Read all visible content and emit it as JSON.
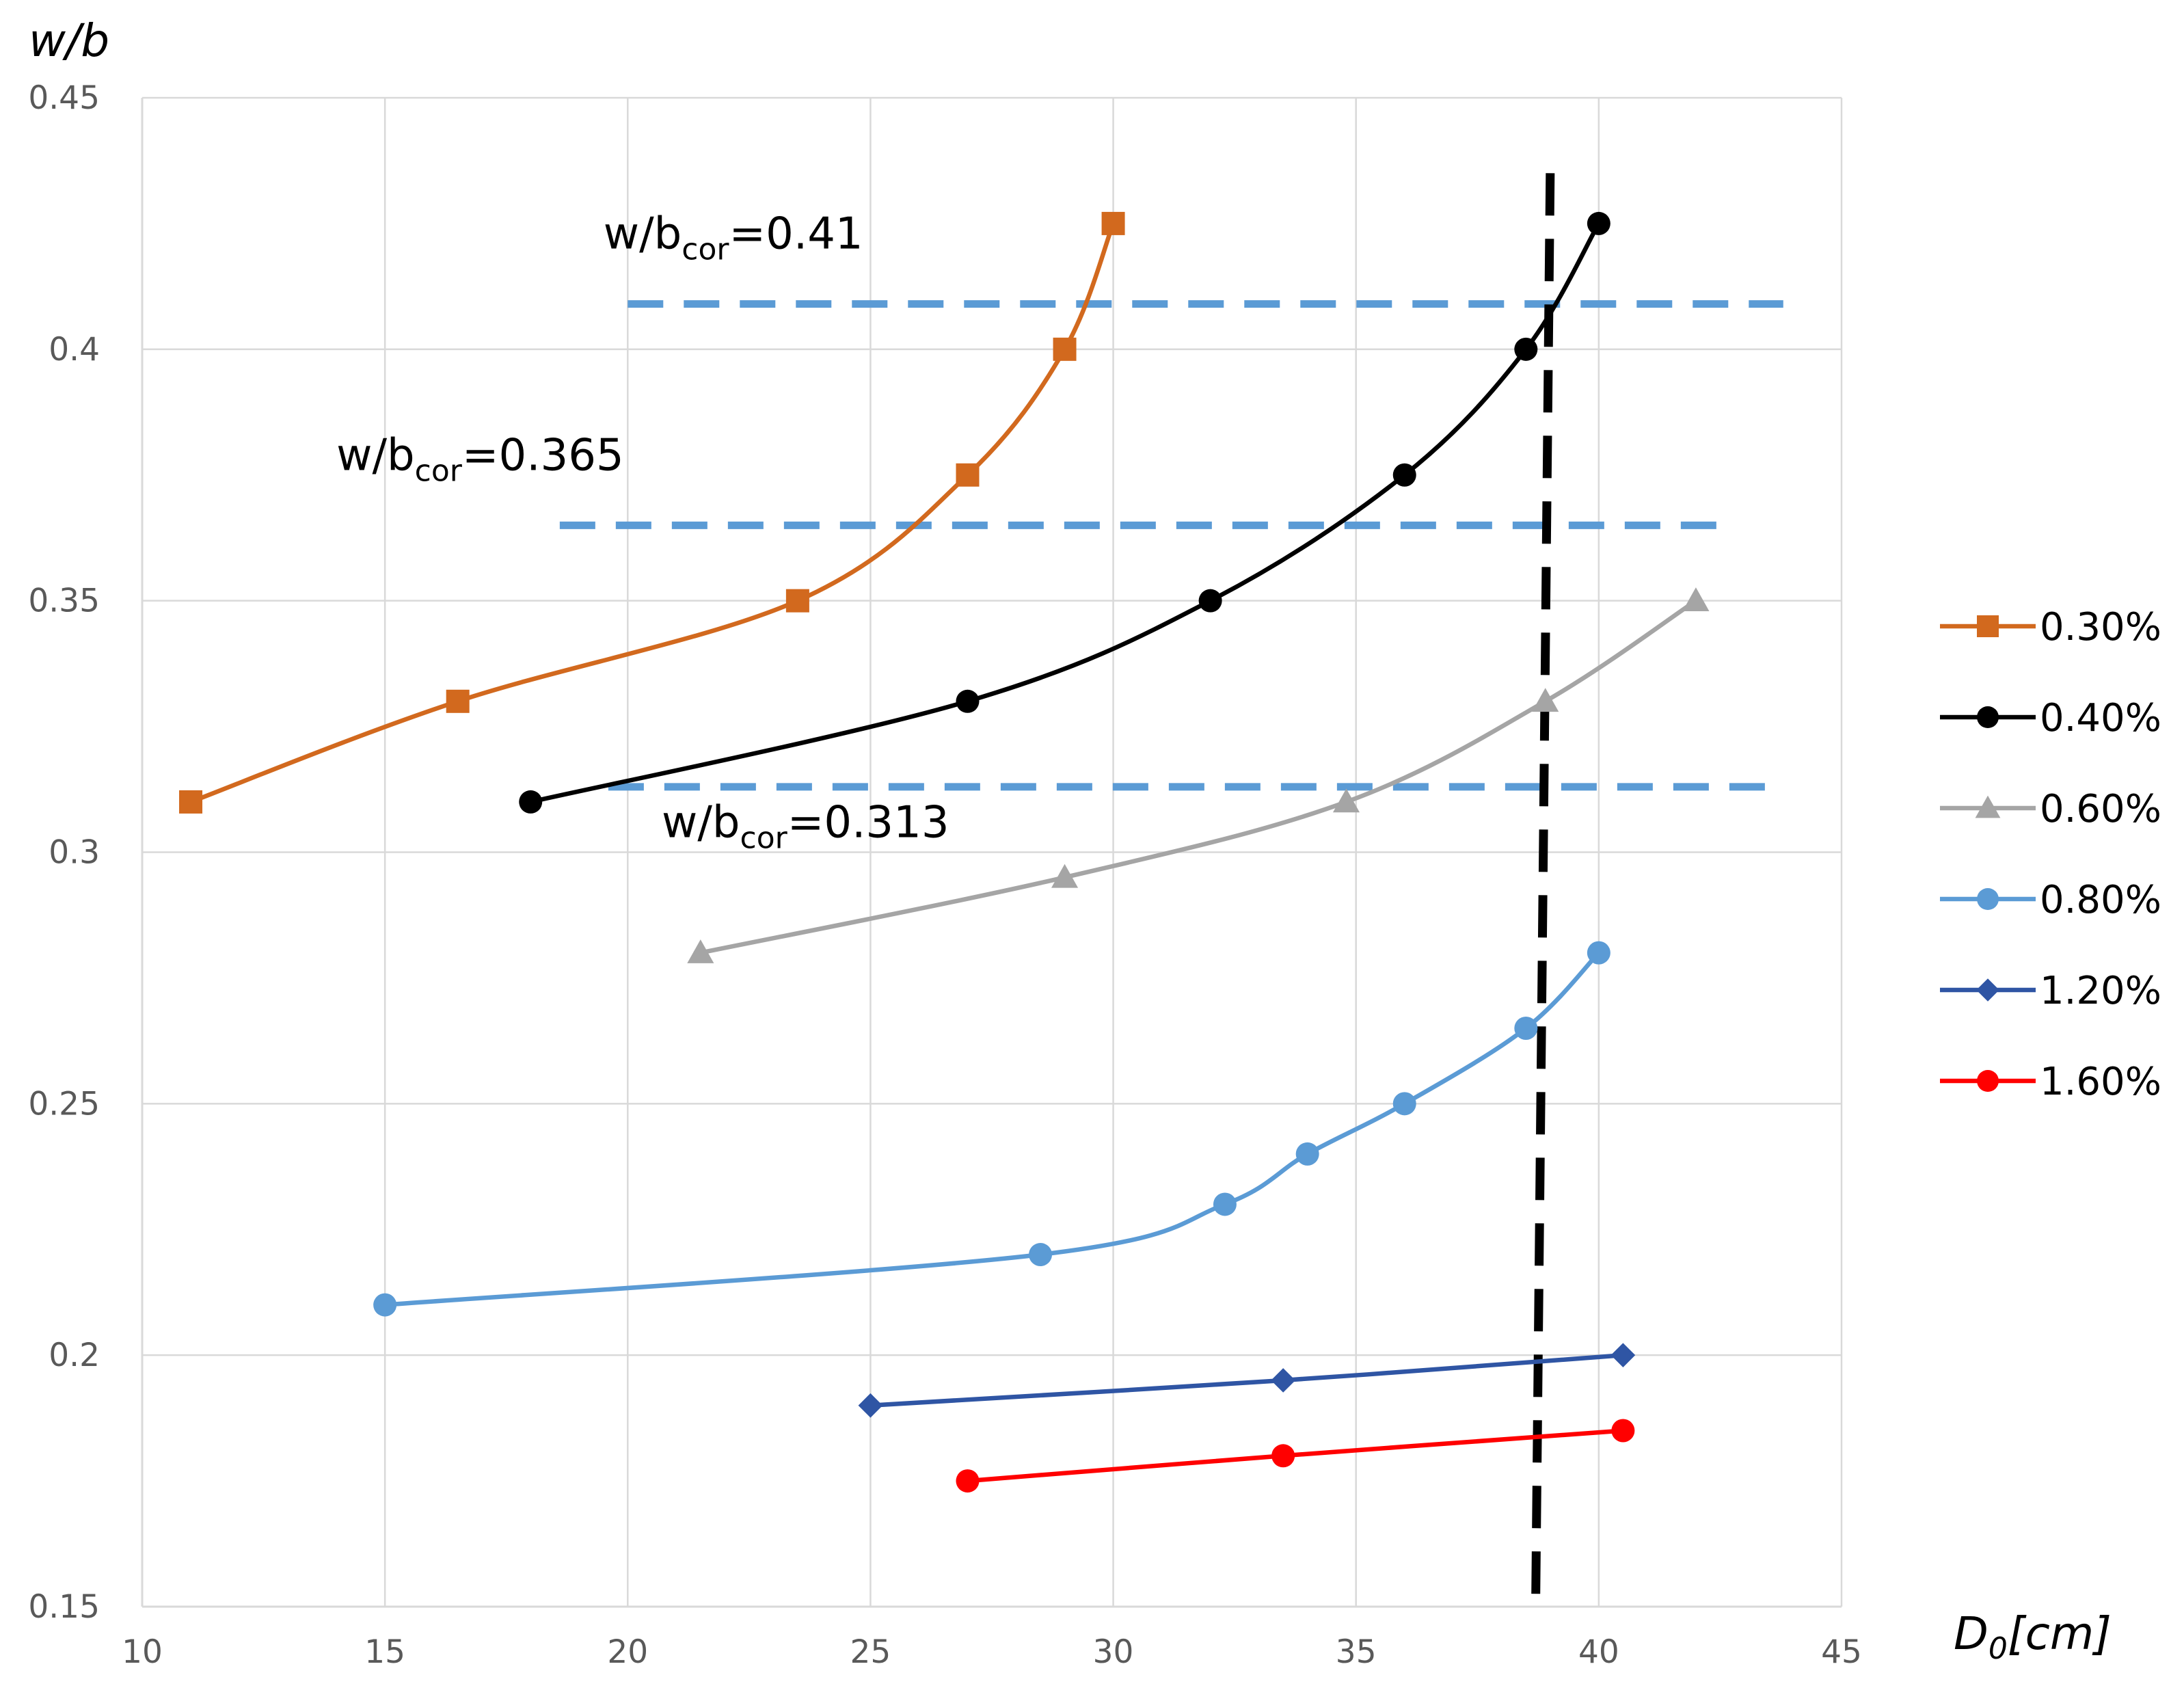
{
  "chart_data": {
    "type": "line",
    "ylabel": "w/b",
    "xlabel_main": "D",
    "xlabel_sub": "0",
    "xlabel_tail": "[cm]",
    "xlim": [
      10,
      45
    ],
    "ylim": [
      0.15,
      0.45
    ],
    "xticks": [
      "10",
      "15",
      "20",
      "25",
      "30",
      "35",
      "40",
      "45"
    ],
    "yticks": [
      "0.15",
      "0.2",
      "0.25",
      "0.3",
      "0.35",
      "0.4",
      "0.45"
    ],
    "grid": true,
    "legend_position": "right",
    "series": [
      {
        "name": "0.30%",
        "color": "#D2691E",
        "marker": "square",
        "x": [
          11,
          16.5,
          23.5,
          27,
          29,
          30
        ],
        "y": [
          0.31,
          0.33,
          0.35,
          0.375,
          0.4,
          0.425
        ]
      },
      {
        "name": "0.40%",
        "color": "#000000",
        "marker": "circle",
        "x": [
          18,
          27,
          32,
          36,
          38.5,
          40
        ],
        "y": [
          0.31,
          0.33,
          0.35,
          0.375,
          0.4,
          0.425
        ]
      },
      {
        "name": "0.60%",
        "color": "#A5A5A5",
        "marker": "triangle",
        "x": [
          21.5,
          29,
          34.8,
          38.9,
          42
        ],
        "y": [
          0.28,
          0.295,
          0.31,
          0.33,
          0.35
        ]
      },
      {
        "name": "0.80%",
        "color": "#5B9BD5",
        "marker": "circle",
        "x": [
          15,
          28.5,
          32.3,
          34,
          36,
          38.5,
          40
        ],
        "y": [
          0.21,
          0.22,
          0.23,
          0.24,
          0.25,
          0.265,
          0.28
        ]
      },
      {
        "name": "1.20%",
        "color": "#2F55A4",
        "marker": "diamond",
        "x": [
          25,
          33.5,
          40.5
        ],
        "y": [
          0.19,
          0.195,
          0.2
        ]
      },
      {
        "name": "1.60%",
        "color": "#FF0000",
        "marker": "circle",
        "x": [
          27,
          33.5,
          40.5
        ],
        "y": [
          0.175,
          0.18,
          0.185
        ]
      }
    ],
    "reference_lines": [
      {
        "type": "horizontal",
        "y": 0.409,
        "x_from": 20,
        "x_to": 43.8,
        "color": "#5B9BD5",
        "style": "dashed"
      },
      {
        "type": "horizontal",
        "y": 0.365,
        "x_from": 18.6,
        "x_to": 42.5,
        "color": "#5B9BD5",
        "style": "dashed"
      },
      {
        "type": "horizontal",
        "y": 0.313,
        "x_from": 19.6,
        "x_to": 43.5,
        "color": "#5B9BD5",
        "style": "dashed"
      },
      {
        "type": "vertical",
        "x_top": 39,
        "x_bottom": 38.7,
        "y_from": 0.15,
        "y_to": 0.435,
        "color": "#000000",
        "style": "dashed"
      }
    ],
    "annotations": [
      {
        "id": "a041",
        "base": "w/b",
        "sub": "cor",
        "value": "=0.41",
        "x": 19.5,
        "y": 0.42
      },
      {
        "id": "a0365",
        "base": "w/b",
        "sub": "cor",
        "value": "=0.365",
        "x": 14,
        "y": 0.376
      },
      {
        "id": "a0313",
        "base": "w/b",
        "sub": "cor",
        "value": "=0.313",
        "x": 20.7,
        "y": 0.303
      }
    ]
  }
}
